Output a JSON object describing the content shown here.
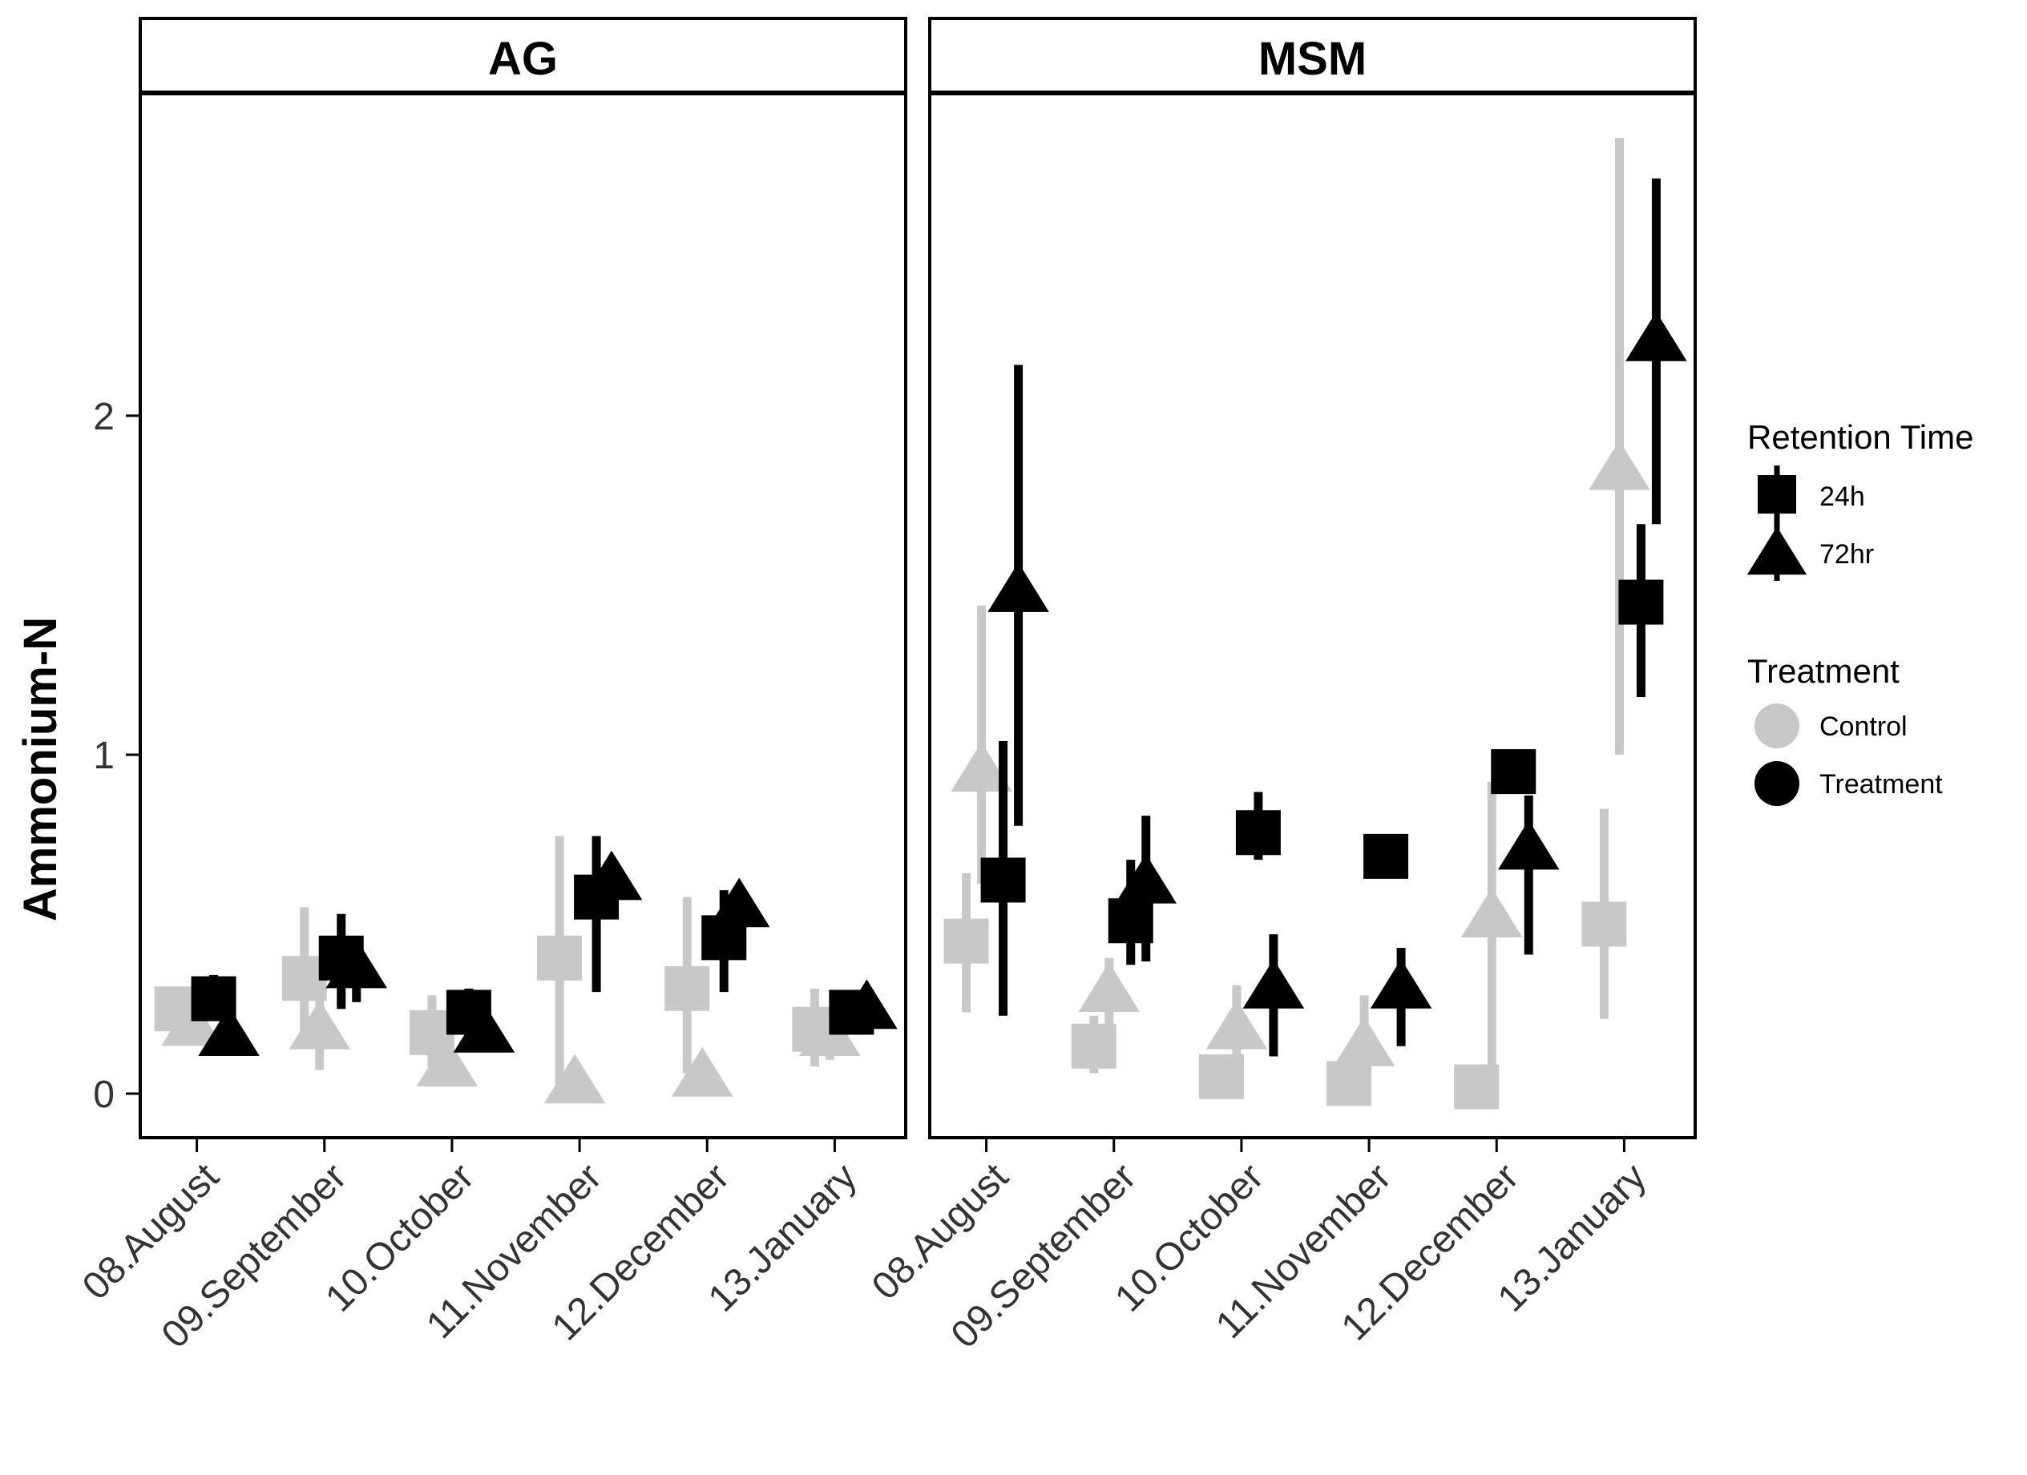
{
  "chart_data": {
    "type": "scatter",
    "ylabel": "Ammonium-N",
    "xlabel": "",
    "ylim": [
      -0.13,
      2.95
    ],
    "yticks": [
      0,
      1,
      2
    ],
    "categories": [
      "08.August",
      "09.September",
      "10.October",
      "11.November",
      "12.December",
      "13.January"
    ],
    "facets": [
      "AG",
      "MSM"
    ],
    "legend": {
      "placement": "right",
      "retention_title": "Retention Time",
      "retention_items": [
        {
          "key": "24h",
          "label": "24h",
          "shape": "square"
        },
        {
          "key": "72hr",
          "label": "72hr",
          "shape": "triangle"
        }
      ],
      "treatment_title": "Treatment",
      "treatment_items": [
        {
          "key": "Control",
          "label": "Control",
          "color": "#c8c8c8"
        },
        {
          "key": "Treatment",
          "label": "Treatment",
          "color": "#000000"
        }
      ]
    },
    "panels": [
      {
        "facet": "AG",
        "series": [
          {
            "treatment": "Control",
            "retention": "24h",
            "values": [
              0.25,
              0.34,
              0.18,
              0.4,
              0.31,
              0.19
            ],
            "lower": [
              0.22,
              0.15,
              0.08,
              0.02,
              0.06,
              0.08
            ],
            "upper": [
              0.31,
              0.55,
              0.29,
              0.76,
              0.58,
              0.31
            ]
          },
          {
            "treatment": "Control",
            "retention": "72hr",
            "values": [
              0.2,
              0.19,
              0.08,
              0.03,
              0.05,
              0.17
            ],
            "lower": [
              0.18,
              0.07,
              0.06,
              0.02,
              0.03,
              0.1
            ],
            "upper": [
              0.22,
              0.3,
              0.1,
              0.04,
              0.07,
              0.25
            ]
          },
          {
            "treatment": "Treatment",
            "retention": "24h",
            "values": [
              0.28,
              0.4,
              0.24,
              0.58,
              0.46,
              0.24
            ],
            "lower": [
              0.24,
              0.25,
              0.19,
              0.3,
              0.3,
              0.19
            ],
            "upper": [
              0.35,
              0.53,
              0.31,
              0.76,
              0.6,
              0.3
            ]
          },
          {
            "treatment": "Treatment",
            "retention": "72hr",
            "values": [
              0.17,
              0.37,
              0.18,
              0.63,
              0.55,
              0.25
            ],
            "lower": [
              0.14,
              0.27,
              0.16,
              0.58,
              0.5,
              0.2
            ],
            "upper": [
              0.2,
              0.45,
              0.22,
              0.67,
              0.59,
              0.3
            ]
          }
        ]
      },
      {
        "facet": "MSM",
        "series": [
          {
            "treatment": "Control",
            "retention": "24h",
            "values": [
              0.45,
              0.14,
              0.05,
              0.03,
              0.02,
              0.5
            ],
            "lower": [
              0.24,
              0.06,
              0.04,
              0.02,
              0.01,
              0.22
            ],
            "upper": [
              0.65,
              0.23,
              0.08,
              0.05,
              0.04,
              0.84
            ]
          },
          {
            "treatment": "Control",
            "retention": "72hr",
            "values": [
              0.95,
              0.3,
              0.19,
              0.14,
              0.52,
              1.84
            ],
            "lower": [
              0.62,
              0.2,
              0.06,
              0.03,
              0.03,
              1.0
            ],
            "upper": [
              1.44,
              0.4,
              0.32,
              0.29,
              0.92,
              2.82
            ]
          },
          {
            "treatment": "Treatment",
            "retention": "24h",
            "values": [
              0.63,
              0.51,
              0.77,
              0.7,
              0.95,
              1.45
            ],
            "lower": [
              0.23,
              0.38,
              0.69,
              0.66,
              0.9,
              1.17
            ],
            "upper": [
              1.04,
              0.69,
              0.89,
              0.74,
              1.0,
              1.68
            ]
          },
          {
            "treatment": "Treatment",
            "retention": "72hr",
            "values": [
              1.48,
              0.62,
              0.31,
              0.31,
              0.72,
              2.22
            ],
            "lower": [
              0.79,
              0.39,
              0.11,
              0.14,
              0.41,
              1.68
            ],
            "upper": [
              2.15,
              0.82,
              0.47,
              0.43,
              0.88,
              2.7
            ]
          }
        ]
      }
    ]
  }
}
